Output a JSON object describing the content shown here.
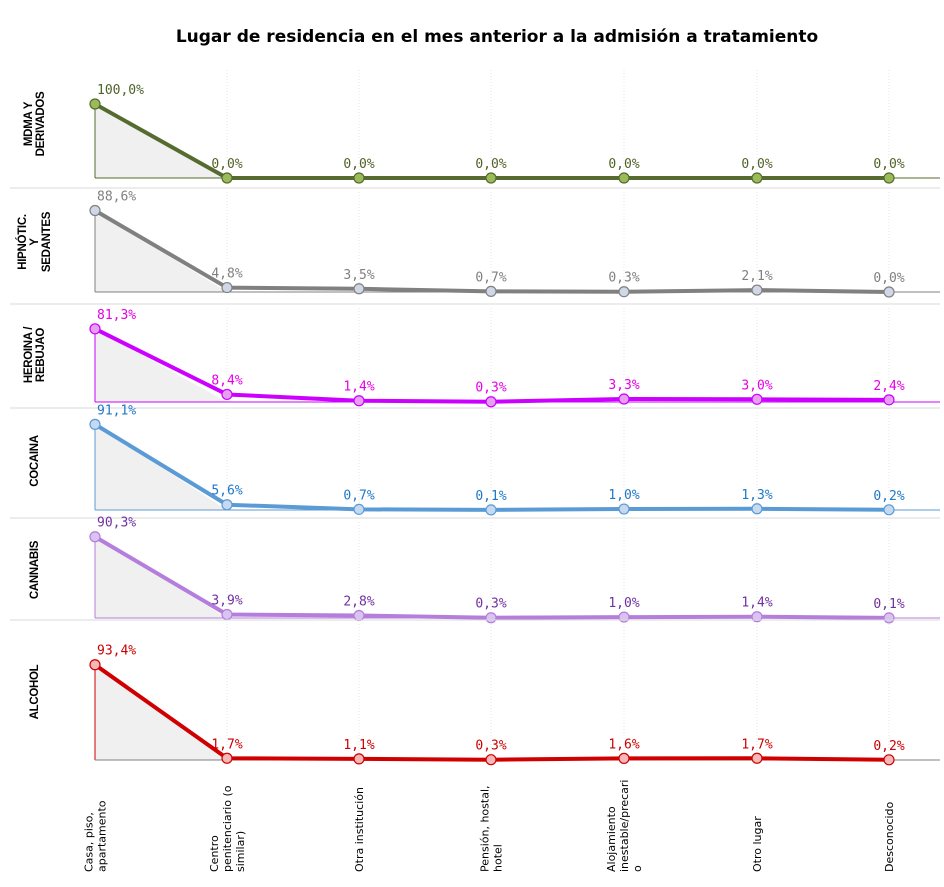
{
  "chart_data": {
    "type": "line",
    "title": "Lugar de residencia en el mes anterior a la admisión a tratamiento",
    "categories": [
      [
        "Casa, piso,",
        "apartamento"
      ],
      [
        "Centro",
        "penitenciario (o",
        "similar)"
      ],
      [
        "Otra institución"
      ],
      [
        "Pensión, hostal,",
        "hotel"
      ],
      [
        "Alojamiento",
        "inestable/precari",
        "o"
      ],
      [
        "Otro lugar"
      ],
      [
        "Desconocido"
      ]
    ],
    "panels": [
      {
        "name": [
          "MDMA Y",
          "DERIVADOS"
        ],
        "color": "#556b2f",
        "marker_fill": "#9bbb59",
        "label_color": "#4f6228",
        "ylim": [
          0,
          100
        ],
        "values": [
          100.0,
          0.0,
          0.0,
          0.0,
          0.0,
          0.0,
          0.0
        ],
        "labels": [
          "100,0%",
          "0,0%",
          "0,0%",
          "0,0%",
          "0,0%",
          "0,0%",
          "0,0%"
        ]
      },
      {
        "name": [
          "HIPNÓTIC.",
          "Y",
          "SEDANTES"
        ],
        "color": "#808080",
        "marker_fill": "#d0d8e8",
        "label_color": "#808080",
        "ylim": [
          0,
          100
        ],
        "values": [
          88.6,
          4.8,
          3.5,
          0.7,
          0.3,
          2.1,
          0.0
        ],
        "labels": [
          "88,6%",
          "4,8%",
          "3,5%",
          "0,7%",
          "0,3%",
          "2,1%",
          "0,0%"
        ]
      },
      {
        "name": [
          "HEROINA /",
          "REBUJAO"
        ],
        "color": "#cc00ff",
        "marker_fill": "#e6a0f0",
        "label_color": "#e600e6",
        "ylim": [
          0,
          100
        ],
        "values": [
          81.3,
          8.4,
          1.4,
          0.3,
          3.3,
          3.0,
          2.4
        ],
        "labels": [
          "81,3%",
          "8,4%",
          "1,4%",
          "0,3%",
          "3,3%",
          "3,0%",
          "2,4%"
        ]
      },
      {
        "name": [
          "COCAINA"
        ],
        "color": "#5b9bd5",
        "marker_fill": "#c5d9f1",
        "label_color": "#1f77c8",
        "ylim": [
          0,
          100
        ],
        "values": [
          91.1,
          5.6,
          0.7,
          0.1,
          1.0,
          1.3,
          0.2
        ],
        "labels": [
          "91,1%",
          "5,6%",
          "0,7%",
          "0,1%",
          "1,0%",
          "1,3%",
          "0,2%"
        ]
      },
      {
        "name": [
          "CANNABIS"
        ],
        "color": "#b57edc",
        "marker_fill": "#d9c3f0",
        "label_color": "#7030a0",
        "ylim": [
          0,
          100
        ],
        "values": [
          90.3,
          3.9,
          2.8,
          0.3,
          1.0,
          1.4,
          0.1
        ],
        "labels": [
          "90,3%",
          "3,9%",
          "2,8%",
          "0,3%",
          "1,0%",
          "1,4%",
          "0,1%"
        ]
      },
      {
        "name": [
          "ALCOHOL"
        ],
        "color": "#d00000",
        "marker_fill": "#f4b8b8",
        "label_color": "#cc0000",
        "ylim": [
          0,
          100
        ],
        "values": [
          93.4,
          1.7,
          1.1,
          0.3,
          1.6,
          1.7,
          0.2
        ],
        "labels": [
          "93,4%",
          "1,7%",
          "1,1%",
          "0,3%",
          "1,6%",
          "1,7%",
          "0,2%"
        ]
      }
    ]
  }
}
